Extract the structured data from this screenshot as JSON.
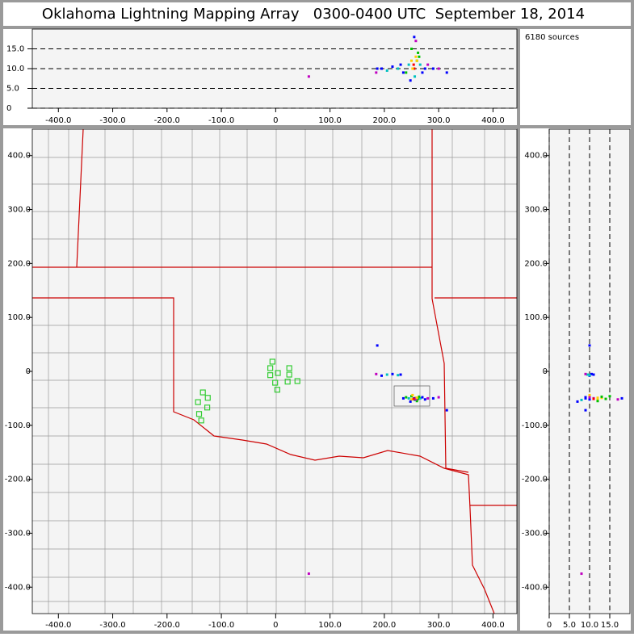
{
  "chart_data": {
    "type": "scatter",
    "title": "Oklahoma Lightning Mapping Array   0300-0400 UTC  September 18, 2014",
    "source_count_label": "6180 sources",
    "xlim": [
      -448,
      444
    ],
    "ylim": [
      -449,
      449
    ],
    "zlim": [
      0,
      20
    ],
    "xticks": [
      {
        "value": -400,
        "label": "-400.0"
      },
      {
        "value": -300,
        "label": "-300.0"
      },
      {
        "value": -200,
        "label": "-200.0"
      },
      {
        "value": -100,
        "label": "-100.0"
      },
      0,
      {
        "value": 100,
        "label": "100.0"
      },
      {
        "value": 200,
        "label": "200.0"
      },
      {
        "value": 300,
        "label": "300.0"
      },
      {
        "value": 400,
        "label": "400.0"
      }
    ],
    "yticks": [
      {
        "value": -400,
        "label": "-400.0"
      },
      {
        "value": -300,
        "label": "-300.0"
      },
      {
        "value": -200,
        "label": "-200.0"
      },
      {
        "value": -100,
        "label": "-100.0"
      },
      0,
      {
        "value": 100,
        "label": "100.0"
      },
      {
        "value": 200,
        "label": "200.0"
      },
      {
        "value": 300,
        "label": "300.0"
      },
      {
        "value": 400,
        "label": "400.0"
      }
    ],
    "zticks": [
      0,
      {
        "value": 5,
        "label": "5.0"
      },
      {
        "value": 10,
        "label": "10.0"
      },
      {
        "value": 15,
        "label": "15.0"
      }
    ],
    "zgrid": true,
    "sources": {
      "x": [
        240,
        245,
        250,
        255,
        258,
        262,
        266,
        270,
        250,
        256,
        260,
        252,
        248,
        264,
        275,
        280,
        235,
        195,
        205,
        215,
        225,
        230,
        185,
        187,
        315,
        61,
        255,
        258,
        290,
        300,
        254,
        260
      ],
      "y": [
        -48,
        -50,
        -52,
        -50,
        -49,
        -51,
        -50,
        -48,
        -46,
        -53,
        -55,
        -44,
        -56,
        -47,
        -52,
        -50,
        -50,
        -8,
        -6,
        -5,
        -7,
        -6,
        -5,
        48,
        -72,
        -375,
        -50,
        -52,
        -50,
        -48,
        -51,
        -49
      ],
      "z": [
        9,
        11,
        12,
        10,
        13,
        14,
        11,
        9,
        15,
        8,
        12,
        10,
        7,
        13,
        10,
        11,
        9,
        10,
        9.5,
        10.5,
        10,
        11,
        9,
        10,
        9,
        8,
        18,
        17,
        10,
        10,
        11,
        12
      ],
      "colors": [
        "#00c000",
        "#00c0c0",
        "#ffd000",
        "#ff0000",
        "#ffd000",
        "#00c000",
        "#00c0c0",
        "#0000ff",
        "#00c000",
        "#00c0c0",
        "#00c000",
        "#ffd000",
        "#0000ff",
        "#00c000",
        "#0000ff",
        "#c000c0",
        "#0000ff",
        "#0000ff",
        "#00c0c0",
        "#0000ff",
        "#00c0c0",
        "#0000ff",
        "#c000c0",
        "#0000ff",
        "#0000ff",
        "#c000c0",
        "#0000ff",
        "#c000c0",
        "#0000ff",
        "#c000c0",
        "#ff0000",
        "#ffd000"
      ]
    },
    "stations": {
      "x": [
        -6,
        -10,
        -10,
        4,
        25,
        22,
        40,
        -1,
        3,
        25,
        -134,
        -143,
        -125,
        -126,
        -141,
        -137
      ],
      "y": [
        18,
        6,
        -7,
        -3,
        6,
        -19,
        -18,
        -21,
        -34,
        -6,
        -39,
        -57,
        -49,
        -67,
        -79,
        -91
      ],
      "color": "#33cc33"
    }
  }
}
